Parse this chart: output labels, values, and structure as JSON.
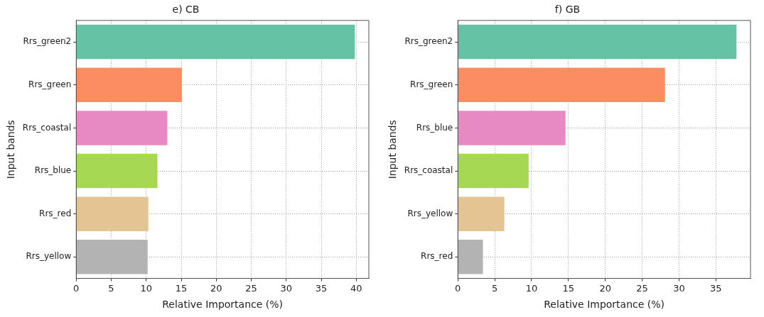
{
  "chart_data": [
    {
      "type": "bar",
      "orientation": "horizontal",
      "title": "e) CB",
      "xlabel": "Relative Importance (%)",
      "ylabel": "Input bands",
      "categories": [
        "Rrs_green2",
        "Rrs_green",
        "Rrs_coastal",
        "Rrs_blue",
        "Rrs_red",
        "Rrs_yellow"
      ],
      "values": [
        39.8,
        15.1,
        13.0,
        11.6,
        10.3,
        10.2
      ],
      "colors": [
        "#66c2a5",
        "#fc8d62",
        "#e78ac3",
        "#a6d854",
        "#e5c494",
        "#b3b3b3"
      ],
      "xlim": [
        0,
        41.8
      ],
      "xticks": [
        0,
        5,
        10,
        15,
        20,
        25,
        30,
        35,
        40
      ],
      "grid": true,
      "line_style": "dotted"
    },
    {
      "type": "bar",
      "orientation": "horizontal",
      "title": "f) GB",
      "xlabel": "Relative Importance (%)",
      "ylabel": "Input bands",
      "categories": [
        "Rrs_green2",
        "Rrs_green",
        "Rrs_blue",
        "Rrs_coastal",
        "Rrs_yellow",
        "Rrs_red"
      ],
      "values": [
        37.8,
        28.1,
        14.6,
        9.6,
        6.3,
        3.4
      ],
      "colors": [
        "#66c2a5",
        "#fc8d62",
        "#e78ac3",
        "#a6d854",
        "#e5c494",
        "#b3b3b3"
      ],
      "xlim": [
        0,
        39.7
      ],
      "xticks": [
        0,
        5,
        10,
        15,
        20,
        25,
        30,
        35
      ],
      "grid": true,
      "line_style": "dotted"
    }
  ]
}
